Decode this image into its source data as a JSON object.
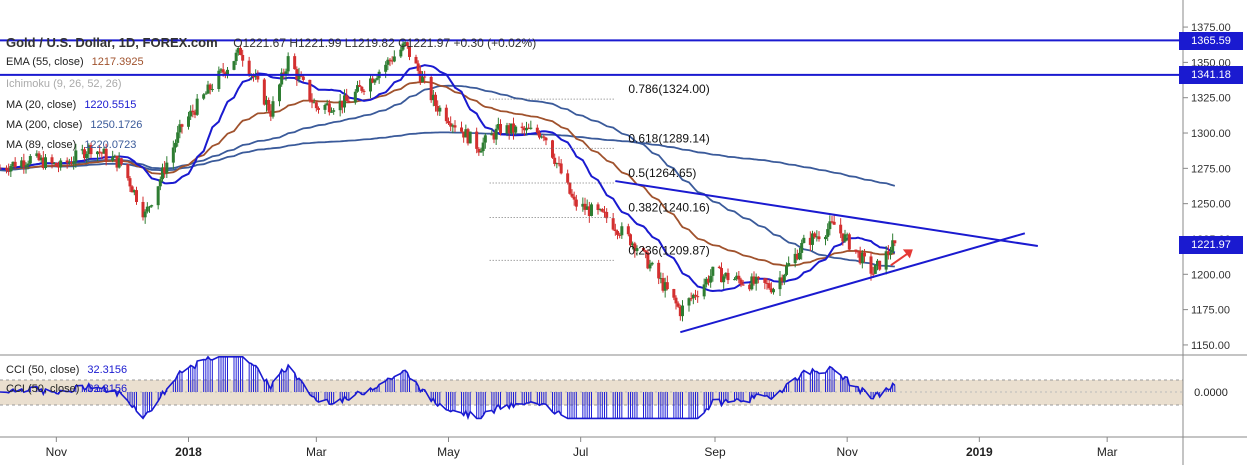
{
  "header": {
    "symbol": "Gold / U.S. Dollar, 1D, FOREX.com",
    "ohlc": "O1221.67  H1221.99  L1219.82  C1221.97  +0.30 (+0.02%)"
  },
  "indicators": [
    {
      "label": "EMA (55, close)",
      "value": "1217.3925",
      "color": "#a0522d"
    },
    {
      "label": "Ichimoku (9, 26, 52, 26)",
      "value": "",
      "color": "#a0a0a0"
    },
    {
      "label": "MA (20, close)",
      "value": "1220.5515",
      "color": "#1a1ad0"
    },
    {
      "label": "MA (200, close)",
      "value": "1250.1726",
      "color": "#3a5a9a"
    },
    {
      "label": "MA (89, close)",
      "value": "1220.0723",
      "color": "#3a5a9a"
    }
  ],
  "cci": [
    {
      "label": "CCI (50, close)",
      "value": "32.3156"
    },
    {
      "label": "CCI (50, close)",
      "value": "32.3156"
    }
  ],
  "price_badges": [
    {
      "text": "1365.59",
      "color": "#1a1ad0",
      "price": 1365.59
    },
    {
      "text": "1341.18",
      "color": "#1a1ad0",
      "price": 1341.18
    },
    {
      "text": "1221.97",
      "color": "#1a1ad0",
      "price": 1221.97
    }
  ],
  "cci_badge": "0.0000",
  "fib_levels": [
    {
      "label": "0.786(1324.00)",
      "price": 1324.0
    },
    {
      "label": "0.618(1289.14)",
      "price": 1289.14
    },
    {
      "label": "0.5(1264.65)",
      "price": 1264.65
    },
    {
      "label": "0.382(1240.16)",
      "price": 1240.16
    },
    {
      "label": "0.236(1209.87)",
      "price": 1209.87
    }
  ],
  "chart_data": {
    "type": "candlestick",
    "title": "Gold / U.S. Dollar, 1D, FOREX.com",
    "y_ticks": [
      1375.0,
      1350.0,
      1325.0,
      1300.0,
      1275.0,
      1250.0,
      1225.0,
      1200.0,
      1175.0,
      1150.0
    ],
    "y_tick_labels": [
      "1375.00",
      "1350.00",
      "1325.00",
      "1300.00",
      "1275.00",
      "1250.00",
      "1225.00",
      "1200.00",
      "1175.00",
      "1150.00"
    ],
    "x_ticks": [
      {
        "label": "Nov",
        "date": "2017-11-01"
      },
      {
        "label": "2018",
        "date": "2018-01-01"
      },
      {
        "label": "Mar",
        "date": "2018-03-01"
      },
      {
        "label": "May",
        "date": "2018-05-01"
      },
      {
        "label": "Jul",
        "date": "2018-07-01"
      },
      {
        "label": "Sep",
        "date": "2018-09-01"
      },
      {
        "label": "Nov",
        "date": "2018-11-01"
      },
      {
        "label": "2019",
        "date": "2019-01-01"
      },
      {
        "label": "Mar",
        "date": "2019-03-01"
      }
    ],
    "x_range": [
      "2017-10-06",
      "2019-04-05"
    ],
    "ylim": [
      1145,
      1380
    ],
    "close_path": [
      {
        "date": "2017-10-06",
        "close": 1275
      },
      {
        "date": "2017-10-20",
        "close": 1282
      },
      {
        "date": "2017-11-03",
        "close": 1276
      },
      {
        "date": "2017-11-17",
        "close": 1290
      },
      {
        "date": "2017-12-01",
        "close": 1278
      },
      {
        "date": "2017-12-12",
        "close": 1242
      },
      {
        "date": "2017-12-29",
        "close": 1305
      },
      {
        "date": "2018-01-15",
        "close": 1340
      },
      {
        "date": "2018-01-25",
        "close": 1358
      },
      {
        "date": "2018-02-08",
        "close": 1315
      },
      {
        "date": "2018-02-16",
        "close": 1352
      },
      {
        "date": "2018-03-01",
        "close": 1318
      },
      {
        "date": "2018-03-15",
        "close": 1322
      },
      {
        "date": "2018-04-11",
        "close": 1362
      },
      {
        "date": "2018-04-25",
        "close": 1320
      },
      {
        "date": "2018-05-15",
        "close": 1290
      },
      {
        "date": "2018-05-25",
        "close": 1303
      },
      {
        "date": "2018-06-14",
        "close": 1300
      },
      {
        "date": "2018-06-28",
        "close": 1250
      },
      {
        "date": "2018-07-13",
        "close": 1240
      },
      {
        "date": "2018-07-27",
        "close": 1220
      },
      {
        "date": "2018-08-16",
        "close": 1174
      },
      {
        "date": "2018-08-31",
        "close": 1201
      },
      {
        "date": "2018-09-14",
        "close": 1195
      },
      {
        "date": "2018-09-28",
        "close": 1191
      },
      {
        "date": "2018-10-12",
        "close": 1222
      },
      {
        "date": "2018-10-26",
        "close": 1235
      },
      {
        "date": "2018-11-13",
        "close": 1201
      },
      {
        "date": "2018-11-23",
        "close": 1221.97
      }
    ],
    "series": [
      {
        "name": "EMA (55, close)",
        "last": 1217.3925
      },
      {
        "name": "MA (20, close)",
        "last": 1220.5515
      },
      {
        "name": "MA (200, close)",
        "last": 1250.1726
      },
      {
        "name": "MA (89, close)",
        "last": 1220.0723
      }
    ],
    "horizontal_lines": [
      1365.59,
      1341.18
    ],
    "trendlines": [
      {
        "from": {
          "date": "2018-07-17",
          "price": 1266
        },
        "to": {
          "date": "2019-01-28",
          "price": 1220
        }
      },
      {
        "from": {
          "date": "2018-08-16",
          "price": 1159
        },
        "to": {
          "date": "2019-01-22",
          "price": 1229
        }
      }
    ]
  }
}
